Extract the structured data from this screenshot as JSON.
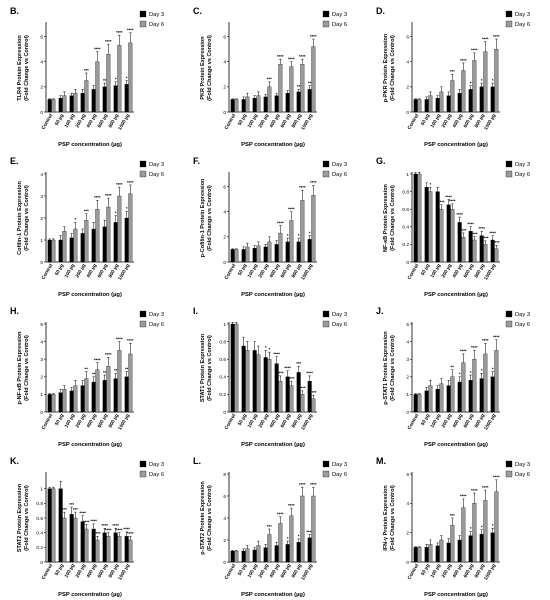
{
  "figure": {
    "xlabel": "PSP concentration (µg)",
    "categories": [
      "Control",
      "50 µg",
      "100 µg",
      "200 µg",
      "400 µg",
      "600 µg",
      "800 µg",
      "1000 µg"
    ],
    "legend": [
      "Day 3",
      "Day 6"
    ],
    "colors": {
      "day3": "#000000",
      "day6": "#9a9a9a",
      "axis": "#000000"
    }
  },
  "chart_data": [
    {
      "type": "bar",
      "panel_letter": "B.",
      "ylabel": [
        "TLR4 Protein Expression",
        "(Fold Change vs Control)"
      ],
      "ylim": [
        0,
        7
      ],
      "yticks": [
        0,
        2,
        4,
        6
      ],
      "categories": [
        "Control",
        "50 µg",
        "100 µg",
        "200 µg",
        "400 µg",
        "600 µg",
        "800 µg",
        "1000 µg"
      ],
      "series": [
        {
          "name": "Day 3",
          "values": [
            1.0,
            1.1,
            1.3,
            1.5,
            1.8,
            2.0,
            2.1,
            2.2
          ],
          "errors": [
            0.05,
            0.2,
            0.2,
            0.3,
            0.3,
            0.3,
            0.3,
            0.3
          ],
          "sig": [
            "",
            "",
            "",
            "",
            "",
            "**",
            "*",
            "*"
          ]
        },
        {
          "name": "Day 6",
          "values": [
            1.0,
            1.3,
            1.5,
            2.5,
            4.0,
            4.6,
            5.3,
            5.5
          ],
          "errors": [
            0.05,
            0.3,
            0.3,
            0.6,
            0.8,
            0.8,
            0.8,
            0.8
          ],
          "sig": [
            "",
            "",
            "",
            "***",
            "****",
            "****",
            "****",
            "****"
          ]
        }
      ]
    },
    {
      "type": "bar",
      "panel_letter": "C.",
      "ylabel": [
        "PKR Protein Expression",
        "(Fold Change vs Control)"
      ],
      "ylim": [
        0,
        7
      ],
      "yticks": [
        0,
        2,
        4,
        6
      ],
      "categories": [
        "Control",
        "50 µg",
        "100 µg",
        "200 µg",
        "400 µg",
        "600 µg",
        "800 µg",
        "1000 µg"
      ],
      "series": [
        {
          "name": "Day 3",
          "values": [
            1.0,
            1.0,
            1.1,
            1.2,
            1.3,
            1.5,
            1.6,
            1.8
          ],
          "errors": [
            0.05,
            0.2,
            0.2,
            0.2,
            0.2,
            0.2,
            0.2,
            0.3
          ],
          "sig": [
            "",
            "",
            "",
            "",
            "",
            "",
            "**",
            "**"
          ]
        },
        {
          "name": "Day 6",
          "values": [
            1.0,
            1.2,
            1.3,
            2.0,
            3.8,
            3.6,
            3.8,
            5.2
          ],
          "errors": [
            0.05,
            0.3,
            0.3,
            0.4,
            0.4,
            0.4,
            0.4,
            0.6
          ],
          "sig": [
            "",
            "",
            "",
            "***",
            "****",
            "****",
            "****",
            "****"
          ]
        }
      ]
    },
    {
      "type": "bar",
      "panel_letter": "D.",
      "ylabel": [
        "p-PKR Protein Expression",
        "(Fold Change vs Control)"
      ],
      "ylim": [
        0,
        7
      ],
      "yticks": [
        0,
        2,
        4,
        6
      ],
      "categories": [
        "Control",
        "50 µg",
        "100 µg",
        "200 µg",
        "400 µg",
        "600 µg",
        "800 µg",
        "1000 µg"
      ],
      "series": [
        {
          "name": "Day 3",
          "values": [
            1.0,
            1.0,
            1.1,
            1.3,
            1.5,
            1.8,
            2.0,
            2.0
          ],
          "errors": [
            0.05,
            0.2,
            0.2,
            0.3,
            0.3,
            0.3,
            0.3,
            0.3
          ],
          "sig": [
            "",
            "",
            "",
            "",
            "",
            "*",
            "*",
            "*"
          ]
        },
        {
          "name": "Day 6",
          "values": [
            1.0,
            1.3,
            1.6,
            2.5,
            3.3,
            4.1,
            4.8,
            5.0
          ],
          "errors": [
            0.05,
            0.3,
            0.4,
            0.5,
            0.6,
            0.6,
            0.8,
            0.8
          ],
          "sig": [
            "",
            "",
            "",
            "***",
            "****",
            "****",
            "****",
            "****"
          ]
        }
      ]
    },
    {
      "type": "bar",
      "panel_letter": "E.",
      "ylabel": [
        "Cofilin-1 Protein Expression",
        "(Fold Change vs Control)"
      ],
      "ylim": [
        0,
        4
      ],
      "yticks": [
        0,
        1,
        2,
        3,
        4
      ],
      "categories": [
        "Control",
        "50 µg",
        "100 µg",
        "200 µg",
        "400 µg",
        "600 µg",
        "800 µg",
        "1000 µg"
      ],
      "series": [
        {
          "name": "Day 3",
          "values": [
            1.0,
            1.0,
            1.1,
            1.3,
            1.5,
            1.6,
            1.8,
            2.0
          ],
          "errors": [
            0.05,
            0.2,
            0.2,
            0.2,
            0.3,
            0.3,
            0.3,
            0.3
          ],
          "sig": [
            "",
            "",
            "",
            "",
            "",
            "",
            "*",
            "*"
          ]
        },
        {
          "name": "Day 6",
          "values": [
            1.0,
            1.4,
            1.5,
            1.9,
            2.4,
            2.5,
            3.0,
            3.1
          ],
          "errors": [
            0.05,
            0.2,
            0.3,
            0.3,
            0.4,
            0.4,
            0.4,
            0.4
          ],
          "sig": [
            "",
            "",
            "*",
            "***",
            "****",
            "****",
            "****",
            "****"
          ]
        }
      ]
    },
    {
      "type": "bar",
      "panel_letter": "F.",
      "ylabel": [
        "p-Cofilin-1 Protein Expression",
        "(Fold Change vs Control)"
      ],
      "ylim": [
        0,
        7
      ],
      "yticks": [
        0,
        2,
        4,
        6
      ],
      "categories": [
        "Control",
        "50 µg",
        "100 µg",
        "200 µg",
        "400 µg",
        "600 µg",
        "800 µg",
        "1000 µg"
      ],
      "series": [
        {
          "name": "Day 3",
          "values": [
            1.0,
            1.0,
            1.1,
            1.2,
            1.4,
            1.6,
            1.6,
            1.8
          ],
          "errors": [
            0.05,
            0.2,
            0.2,
            0.2,
            0.3,
            0.3,
            0.3,
            0.3
          ],
          "sig": [
            "",
            "",
            "",
            "",
            "",
            "*",
            "*",
            "*"
          ]
        },
        {
          "name": "Day 6",
          "values": [
            1.0,
            1.2,
            1.3,
            1.6,
            2.3,
            3.3,
            4.9,
            5.3
          ],
          "errors": [
            0.05,
            0.3,
            0.3,
            0.4,
            0.6,
            0.7,
            0.8,
            0.8
          ],
          "sig": [
            "",
            "",
            "",
            "",
            "****",
            "****",
            "****",
            "****"
          ]
        }
      ]
    },
    {
      "type": "bar",
      "panel_letter": "G.",
      "ylabel": [
        "NF-κB Protein Expression",
        "(Fold Change vs Control)"
      ],
      "ylim": [
        0,
        1.0
      ],
      "yticks": [
        0,
        0.2,
        0.4,
        0.6,
        0.8,
        1.0
      ],
      "categories": [
        "Control",
        "50 µg",
        "100 µg",
        "200 µg",
        "400 µg",
        "600 µg",
        "800 µg",
        "1000 µg"
      ],
      "series": [
        {
          "name": "Day 3",
          "values": [
            1.0,
            0.85,
            0.8,
            0.65,
            0.45,
            0.35,
            0.3,
            0.25
          ],
          "errors": [
            0.02,
            0.05,
            0.05,
            0.06,
            0.06,
            0.05,
            0.05,
            0.05
          ],
          "sig": [
            "",
            "",
            "",
            "****",
            "****",
            "****",
            "****",
            "****"
          ]
        },
        {
          "name": "Day 6",
          "values": [
            1.0,
            0.8,
            0.6,
            0.6,
            0.28,
            0.25,
            0.2,
            0.15
          ],
          "errors": [
            0.02,
            0.05,
            0.05,
            0.06,
            0.05,
            0.04,
            0.04,
            0.04
          ],
          "sig": [
            "",
            "*",
            "****",
            "****",
            "****",
            "****",
            "****",
            "****"
          ]
        }
      ]
    },
    {
      "type": "bar",
      "panel_letter": "H.",
      "ylabel": [
        "p-NF-κB Protein Expression",
        "(Fold Change vs Control)"
      ],
      "ylim": [
        0,
        5
      ],
      "yticks": [
        0,
        1,
        2,
        3,
        4,
        5
      ],
      "categories": [
        "Control",
        "50 µg",
        "100 µg",
        "200 µg",
        "400 µg",
        "600 µg",
        "800 µg",
        "1000 µg"
      ],
      "series": [
        {
          "name": "Day 3",
          "values": [
            1.0,
            1.1,
            1.2,
            1.5,
            1.7,
            1.8,
            1.9,
            2.0
          ],
          "errors": [
            0.05,
            0.2,
            0.2,
            0.3,
            0.3,
            0.3,
            0.3,
            0.3
          ],
          "sig": [
            "",
            "",
            "",
            "",
            "**",
            "**",
            "**",
            "**"
          ]
        },
        {
          "name": "Day 6",
          "values": [
            1.0,
            1.3,
            1.5,
            1.9,
            2.4,
            2.6,
            3.5,
            3.3
          ],
          "errors": [
            0.05,
            0.2,
            0.3,
            0.4,
            0.4,
            0.5,
            0.5,
            0.6
          ],
          "sig": [
            "",
            "",
            "",
            "**",
            "****",
            "****",
            "****",
            "****"
          ]
        }
      ]
    },
    {
      "type": "bar",
      "panel_letter": "I.",
      "ylabel": [
        "STAT1 Protein Expression",
        "(Fold Change vs Control)"
      ],
      "ylim": [
        0,
        1.0
      ],
      "yticks": [
        0,
        0.2,
        0.4,
        0.6,
        0.8,
        1.0
      ],
      "categories": [
        "Control",
        "50 µg",
        "100 µg",
        "200 µg",
        "400 µg",
        "600 µg",
        "800 µg",
        "1000 µg"
      ],
      "series": [
        {
          "name": "Day 3",
          "values": [
            1.0,
            0.75,
            0.7,
            0.62,
            0.55,
            0.4,
            0.45,
            0.35
          ],
          "errors": [
            0.02,
            0.1,
            0.1,
            0.08,
            0.08,
            0.07,
            0.07,
            0.06
          ],
          "sig": [
            "",
            "",
            "",
            "*",
            "****",
            "****",
            "***",
            "****"
          ]
        },
        {
          "name": "Day 6",
          "values": [
            1.0,
            0.7,
            0.65,
            0.6,
            0.35,
            0.3,
            0.2,
            0.15
          ],
          "errors": [
            0.02,
            0.1,
            0.1,
            0.08,
            0.06,
            0.05,
            0.04,
            0.04
          ],
          "sig": [
            "",
            "",
            "",
            "*",
            "****",
            "****",
            "****",
            "****"
          ]
        }
      ]
    },
    {
      "type": "bar",
      "panel_letter": "J.",
      "ylabel": [
        "p-STAT1 Protein Expression",
        "(Fold Change vs Control)"
      ],
      "ylim": [
        0,
        5
      ],
      "yticks": [
        0,
        1,
        2,
        3,
        4,
        5
      ],
      "categories": [
        "Control",
        "50 µg",
        "100 µg",
        "200 µg",
        "400 µg",
        "600 µg",
        "800 µg",
        "1000 µg"
      ],
      "series": [
        {
          "name": "Day 3",
          "values": [
            1.0,
            1.2,
            1.3,
            1.5,
            1.7,
            1.8,
            1.9,
            2.0
          ],
          "errors": [
            0.05,
            0.2,
            0.2,
            0.3,
            0.3,
            0.3,
            0.3,
            0.3
          ],
          "sig": [
            "",
            "",
            "",
            "",
            "*",
            "*",
            "*",
            "*"
          ]
        },
        {
          "name": "Day 6",
          "values": [
            1.0,
            1.5,
            1.6,
            2.0,
            2.8,
            3.0,
            3.3,
            3.5
          ],
          "errors": [
            0.05,
            0.3,
            0.3,
            0.4,
            0.5,
            0.5,
            0.6,
            0.6
          ],
          "sig": [
            "",
            "",
            "",
            "**",
            "****",
            "****",
            "****",
            "****"
          ]
        }
      ]
    },
    {
      "type": "bar",
      "panel_letter": "K.",
      "ylabel": [
        "STAT2 Protein Expression",
        "(Fold Change vs Control)"
      ],
      "ylim": [
        0,
        1.2
      ],
      "yticks": [
        0,
        0.2,
        0.4,
        0.6,
        0.8,
        1.0
      ],
      "categories": [
        "Control",
        "50 µg",
        "100 µg",
        "200 µg",
        "400 µg",
        "600 µg",
        "800 µg",
        "1000 µg"
      ],
      "series": [
        {
          "name": "Day 3",
          "values": [
            1.0,
            1.0,
            0.65,
            0.55,
            0.45,
            0.4,
            0.4,
            0.35
          ],
          "errors": [
            0.02,
            0.1,
            0.1,
            0.08,
            0.07,
            0.06,
            0.06,
            0.06
          ],
          "sig": [
            "",
            "",
            "***",
            "****",
            "****",
            "****",
            "****",
            "****"
          ]
        },
        {
          "name": "Day 6",
          "values": [
            1.0,
            0.6,
            0.6,
            0.45,
            0.3,
            0.35,
            0.35,
            0.3
          ],
          "errors": [
            0.02,
            0.08,
            0.08,
            0.06,
            0.05,
            0.05,
            0.05,
            0.05
          ],
          "sig": [
            "",
            "***",
            "***",
            "****",
            "****",
            "****",
            "****",
            "****"
          ]
        }
      ]
    },
    {
      "type": "bar",
      "panel_letter": "L.",
      "ylabel": [
        "p-STAT2 Protein Expression",
        "(Fold Change vs Control)"
      ],
      "ylim": [
        0,
        8
      ],
      "yticks": [
        0,
        2,
        4,
        6,
        8
      ],
      "categories": [
        "Control",
        "50 µg",
        "100 µg",
        "200 µg",
        "400 µg",
        "600 µg",
        "800 µg",
        "1000 µg"
      ],
      "series": [
        {
          "name": "Day 3",
          "values": [
            1.0,
            1.0,
            1.1,
            1.3,
            1.5,
            1.6,
            1.8,
            2.2
          ],
          "errors": [
            0.05,
            0.2,
            0.2,
            0.3,
            0.3,
            0.3,
            0.3,
            0.3
          ],
          "sig": [
            "",
            "",
            "",
            "",
            "",
            "*",
            "*",
            "****"
          ]
        },
        {
          "name": "Day 6",
          "values": [
            1.0,
            1.2,
            1.5,
            2.5,
            3.5,
            4.2,
            6.0,
            6.0
          ],
          "errors": [
            0.05,
            0.3,
            0.4,
            0.5,
            0.6,
            0.7,
            0.8,
            0.8
          ],
          "sig": [
            "",
            "",
            "",
            "***",
            "****",
            "****",
            "****",
            "****"
          ]
        }
      ]
    },
    {
      "type": "bar",
      "panel_letter": "M.",
      "ylabel": [
        "IFN-γ Protein Expression",
        "(Fold Change vs Control)"
      ],
      "ylim": [
        0,
        6
      ],
      "yticks": [
        0,
        2,
        4,
        6
      ],
      "categories": [
        "Control",
        "50 µg",
        "100 µg",
        "200 µg",
        "400 µg",
        "600 µg",
        "800 µg",
        "1000 µg"
      ],
      "series": [
        {
          "name": "Day 3",
          "values": [
            1.0,
            1.0,
            1.1,
            1.3,
            1.5,
            1.8,
            1.9,
            2.0
          ],
          "errors": [
            0.05,
            0.2,
            0.2,
            0.3,
            0.3,
            0.3,
            0.3,
            0.3
          ],
          "sig": [
            "",
            "",
            "",
            "",
            "",
            "*",
            "*",
            "*"
          ]
        },
        {
          "name": "Day 6",
          "values": [
            1.0,
            1.2,
            1.5,
            2.5,
            3.7,
            4.0,
            4.2,
            4.8
          ],
          "errors": [
            0.05,
            0.3,
            0.3,
            0.5,
            0.6,
            0.7,
            0.7,
            0.8
          ],
          "sig": [
            "",
            "",
            "",
            "***",
            "****",
            "****",
            "****",
            "****"
          ]
        }
      ]
    }
  ]
}
